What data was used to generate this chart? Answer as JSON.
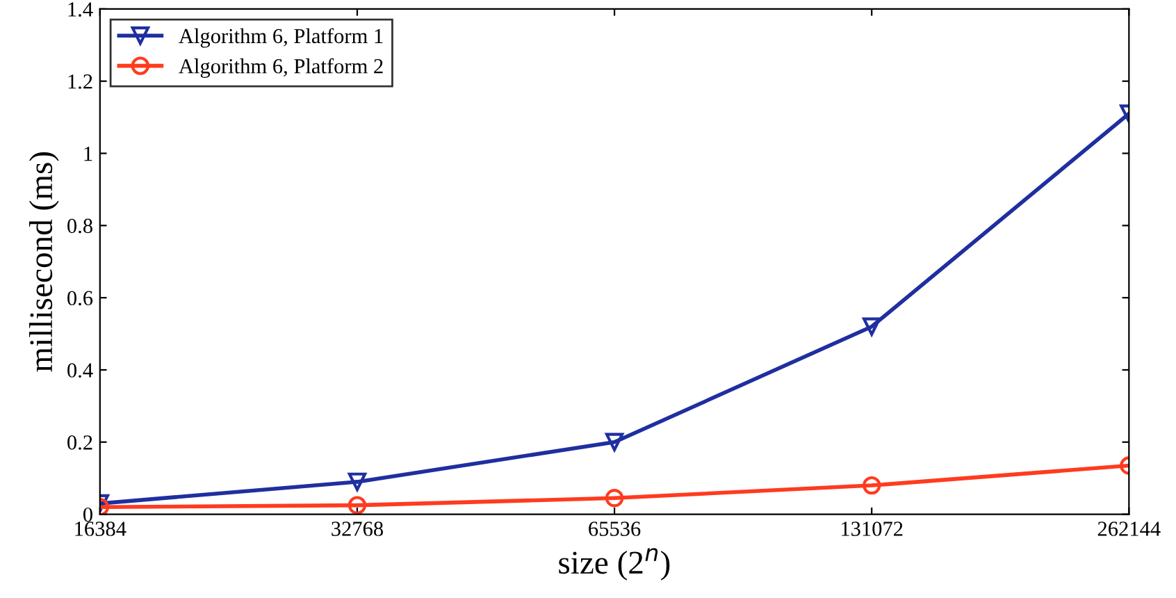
{
  "chart_data": {
    "type": "line",
    "xlabel": "size (2$^{n}$)",
    "ylabel": "millisecond (ms)",
    "categories": [
      "16384",
      "32768",
      "65536",
      "131072",
      "262144"
    ],
    "series": [
      {
        "name": "Algorithm 6, Platform 1",
        "color": "#1f2fa0",
        "marker": "triangle",
        "values": [
          0.03,
          0.09,
          0.2,
          0.52,
          1.11
        ]
      },
      {
        "name": "Algorithm 6, Platform 2",
        "color": "#ff3b1f",
        "marker": "circle",
        "values": [
          0.02,
          0.025,
          0.045,
          0.08,
          0.135
        ]
      }
    ],
    "ylim": [
      0,
      1.4
    ],
    "yticks": [
      0,
      0.2,
      0.4,
      0.6,
      0.8,
      1,
      1.2,
      1.4
    ],
    "grid": false,
    "legend": "top left",
    "line_style": "solid"
  }
}
